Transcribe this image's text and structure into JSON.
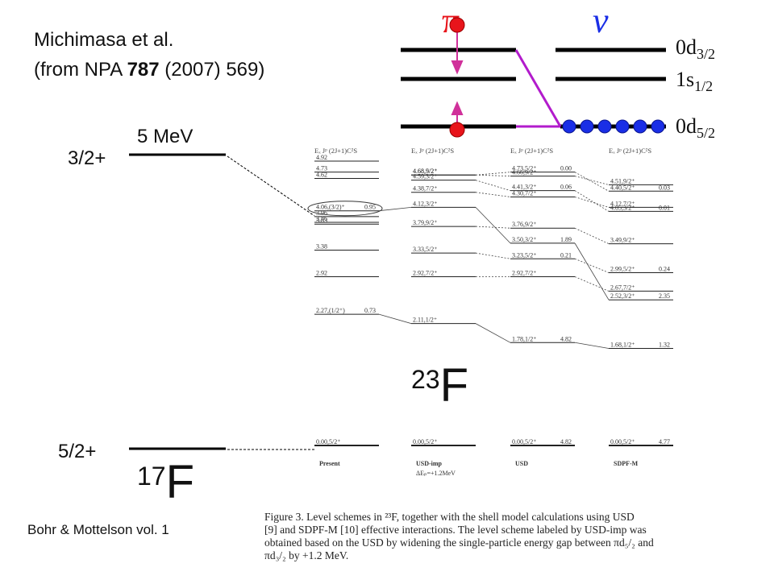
{
  "citation": {
    "authors": "Michimasa et al.",
    "ref_prefix": "(from NPA ",
    "ref_volume": "787",
    "ref_suffix": " (2007) 569)"
  },
  "shell_model": {
    "pi_symbol": "π",
    "nu_symbol": "ν",
    "orbitals": [
      {
        "id": "d32",
        "base": "0d",
        "sub": "3/2"
      },
      {
        "id": "s12",
        "base": "1s",
        "sub": "1/2"
      },
      {
        "id": "d52",
        "base": "0d",
        "sub": "5/2"
      }
    ],
    "colors": {
      "proton": "#e8141b",
      "neutron": "#1a2ee6",
      "link": "#b21bcc",
      "arrow": "#d0309a"
    }
  },
  "f17": {
    "excitation": "5 MeV",
    "upper_label": "3/2+",
    "ground_label": "5/2+",
    "nucleus_mass": "17",
    "nucleus_symbol": "F",
    "book_ref": "Bohr & Mottelson vol. 1"
  },
  "f23": {
    "nucleus_mass": "23",
    "nucleus_symbol": "F",
    "columns": [
      {
        "id": "present",
        "name": "Present",
        "sub": "",
        "header": "Eₓ Jᵖ   (2J+1)C²S",
        "levels": [
          {
            "e": 4.92,
            "label": "4.92",
            "sf": ""
          },
          {
            "e": 4.73,
            "label": "4.73",
            "sf": ""
          },
          {
            "e": 4.62,
            "label": "4.62",
            "sf": ""
          },
          {
            "e": 4.06,
            "label": "4.06,(3/2)⁺",
            "sf": "0.95"
          },
          {
            "e": 3.96,
            "label": "3.96",
            "sf": ""
          },
          {
            "e": 3.86,
            "label": "3.86",
            "sf": ""
          },
          {
            "e": 3.83,
            "label": "3.83",
            "sf": ""
          },
          {
            "e": 3.38,
            "label": "3.38",
            "sf": ""
          },
          {
            "e": 2.92,
            "label": "2.92",
            "sf": ""
          },
          {
            "e": 2.27,
            "label": "2.27,(1/2⁺)",
            "sf": "0.73"
          },
          {
            "e": 0.0,
            "label": "0.00,5/2⁺",
            "sf": ""
          }
        ]
      },
      {
        "id": "usd-imp",
        "name": "USD-imp",
        "sub": "ΔEₚ=+1.2MeV",
        "header": "Eₓ Jᵖ   (2J+1)C²S",
        "levels": [
          {
            "e": 4.68,
            "label": "4.68,5/2⁺",
            "sf": ""
          },
          {
            "e": 4.68,
            "label": "4.68,9/2⁺",
            "sf": ""
          },
          {
            "e": 4.59,
            "label": "4.59,3/2⁺",
            "sf": ""
          },
          {
            "e": 4.38,
            "label": "4.38,7/2⁺",
            "sf": ""
          },
          {
            "e": 4.12,
            "label": "4.12,3/2⁺",
            "sf": ""
          },
          {
            "e": 3.79,
            "label": "3.79,9/2⁺",
            "sf": ""
          },
          {
            "e": 3.33,
            "label": "3.33,5/2⁺",
            "sf": ""
          },
          {
            "e": 2.92,
            "label": "2.92,7/2⁺",
            "sf": ""
          },
          {
            "e": 2.11,
            "label": "2.11,1/2⁺",
            "sf": ""
          },
          {
            "e": 0.0,
            "label": "0.00,5/2⁺",
            "sf": ""
          }
        ]
      },
      {
        "id": "usd",
        "name": "USD",
        "sub": "",
        "header": "Eₓ Jᵖ   (2J+1)C²S",
        "levels": [
          {
            "e": 4.73,
            "label": "4.73,5/2⁺",
            "sf": "0.00"
          },
          {
            "e": 4.66,
            "label": "4.66,9/2⁺",
            "sf": ""
          },
          {
            "e": 4.41,
            "label": "4.41,3/2⁺",
            "sf": "0.06"
          },
          {
            "e": 4.3,
            "label": "4.30,7/2⁺",
            "sf": ""
          },
          {
            "e": 3.76,
            "label": "3.76,9/2⁺",
            "sf": ""
          },
          {
            "e": 3.5,
            "label": "3.50,3/2⁺",
            "sf": "1.89"
          },
          {
            "e": 3.23,
            "label": "3.23,5/2⁺",
            "sf": "0.21"
          },
          {
            "e": 2.92,
            "label": "2.92,7/2⁺",
            "sf": ""
          },
          {
            "e": 1.78,
            "label": "1.78,1/2⁺",
            "sf": "4.82"
          },
          {
            "e": 0.0,
            "label": "0.00,5/2⁺",
            "sf": "4.82"
          }
        ]
      },
      {
        "id": "sdpf-m",
        "name": "SDPF-M",
        "sub": "",
        "header": "Eₓ Jᵖ   (2J+1)C²S",
        "levels": [
          {
            "e": 4.51,
            "label": "4.51,9/2⁺",
            "sf": ""
          },
          {
            "e": 4.4,
            "label": "4.40,5/2⁺",
            "sf": "0.03"
          },
          {
            "e": 4.12,
            "label": "4.12,7/2⁺",
            "sf": ""
          },
          {
            "e": 4.05,
            "label": "4.05,3/2⁺",
            "sf": "0.01"
          },
          {
            "e": 3.49,
            "label": "3.49,9/2⁺",
            "sf": ""
          },
          {
            "e": 2.99,
            "label": "2.99,5/2⁺",
            "sf": "0.24"
          },
          {
            "e": 2.67,
            "label": "2.67,7/2⁺",
            "sf": ""
          },
          {
            "e": 2.52,
            "label": "2.52,3/2⁺",
            "sf": "2.35"
          },
          {
            "e": 1.68,
            "label": "1.68,1/2⁺",
            "sf": "1.32"
          },
          {
            "e": 0.0,
            "label": "0.00,5/2⁺",
            "sf": "4.77"
          }
        ]
      }
    ]
  },
  "caption": {
    "line1": "Figure 3.  Level schemes in ²³F, together with the shell model calculations using USD",
    "line2": "[9] and SDPF-M [10] effective interactions. The level scheme labeled by USD-imp was",
    "line3": "obtained based on the USD by widening the single-particle energy gap between πd₅/₂ and",
    "line4": "πd₃/₂ by +1.2 MeV."
  }
}
